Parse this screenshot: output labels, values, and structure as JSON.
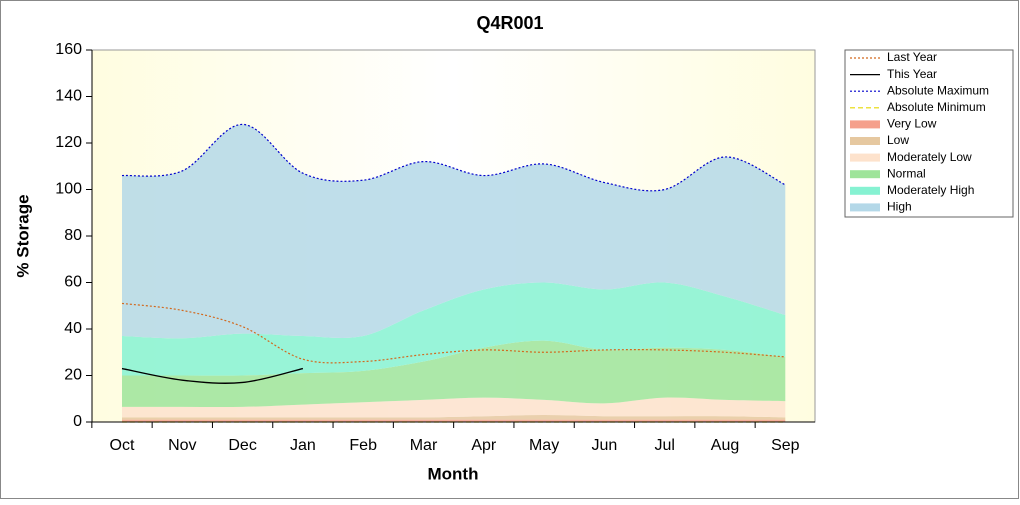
{
  "chart_data": {
    "type": "area",
    "title": "Q4R001",
    "x_label": "Month",
    "y_label": "% Storage",
    "categories": [
      "Oct",
      "Nov",
      "Dec",
      "Jan",
      "Feb",
      "Mar",
      "Apr",
      "May",
      "Jun",
      "Jul",
      "Aug",
      "Sep"
    ],
    "ylim": [
      0,
      160
    ],
    "yticks": [
      0,
      20,
      40,
      60,
      80,
      100,
      120,
      140,
      160
    ],
    "series": [
      {
        "name": "Last Year",
        "color": "#d2691e",
        "dash": "dotted",
        "values": [
          51,
          48,
          41,
          27,
          26,
          29,
          31,
          30,
          31,
          31,
          30,
          28
        ]
      },
      {
        "name": "This Year",
        "color": "#000000",
        "dash": "solid",
        "values": [
          23,
          18,
          17,
          23,
          null,
          null,
          null,
          null,
          null,
          null,
          null,
          null
        ]
      },
      {
        "name": "Absolute Maximum",
        "color": "#0000cc",
        "dash": "dotted",
        "values": [
          106,
          108,
          128,
          107,
          104,
          112,
          106,
          111,
          103,
          100,
          114,
          102
        ]
      },
      {
        "name": "Absolute Minimum",
        "color": "#e6d800",
        "dash": "dashed",
        "values": [
          0,
          0,
          0,
          0,
          0,
          0,
          0,
          0,
          0,
          0,
          0,
          0
        ]
      },
      {
        "name": "Very Low",
        "color": "#f5a08c",
        "stacked": true,
        "values": [
          1,
          1,
          1,
          1,
          1,
          1,
          1,
          1,
          1,
          1,
          1,
          1
        ]
      },
      {
        "name": "Low",
        "color": "#e6c8a0",
        "stacked": true,
        "values": [
          1,
          1,
          1,
          1,
          1,
          1,
          1.5,
          2,
          1.5,
          1.5,
          1.5,
          1
        ]
      },
      {
        "name": "Moderately Low",
        "color": "#fde2cc",
        "stacked": true,
        "values": [
          4.5,
          4.5,
          4.5,
          5.5,
          6.5,
          7.5,
          8,
          6.5,
          5.5,
          8,
          7,
          7
        ]
      },
      {
        "name": "Normal",
        "color": "#9ee49a",
        "stacked": true,
        "values": [
          13.5,
          13.5,
          13.5,
          13.5,
          13.5,
          16.5,
          21.5,
          25.5,
          23,
          21.5,
          21.5,
          19
        ]
      },
      {
        "name": "Moderately High",
        "color": "#86f2d2",
        "stacked": true,
        "values": [
          17,
          16,
          18,
          16,
          15,
          22,
          25,
          25,
          26,
          28,
          23,
          18
        ]
      },
      {
        "name": "High",
        "color": "#b4d8e8",
        "stacked": true,
        "values": [
          69,
          72,
          90,
          70,
          67,
          64,
          49,
          51,
          46,
          40,
          60,
          56
        ]
      }
    ]
  }
}
